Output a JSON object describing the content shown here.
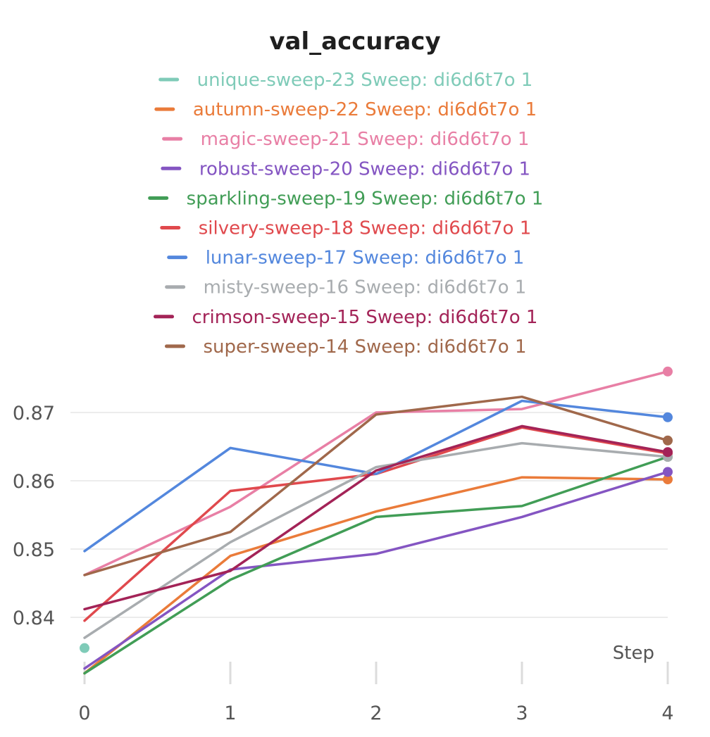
{
  "chart_data": {
    "type": "line",
    "title": "val_accuracy",
    "xlabel": "Step",
    "ylabel": "",
    "x": [
      0,
      1,
      2,
      3,
      4
    ],
    "x_ticks": [
      "0",
      "1",
      "2",
      "3",
      "4"
    ],
    "y_ticks": [
      "0.84",
      "0.85",
      "0.86",
      "0.87"
    ],
    "ylim": [
      0.8315,
      0.877
    ],
    "grid": true,
    "legend_position": "top",
    "series": [
      {
        "name": "unique-sweep-23 Sweep: di6d6t7o 1",
        "color": "#7fcbb8",
        "values": [
          0.8355,
          null,
          null,
          null,
          null
        ]
      },
      {
        "name": "autumn-sweep-22 Sweep: di6d6t7o 1",
        "color": "#ea7b3a",
        "values": [
          0.8318,
          0.849,
          0.8555,
          0.8605,
          0.8602
        ]
      },
      {
        "name": "magic-sweep-21 Sweep: di6d6t7o 1",
        "color": "#e87fa5",
        "values": [
          0.8462,
          0.8562,
          0.87,
          0.8705,
          0.876
        ]
      },
      {
        "name": "robust-sweep-20 Sweep: di6d6t7o 1",
        "color": "#8455c2",
        "values": [
          0.8325,
          0.847,
          0.8493,
          0.8547,
          0.8613
        ]
      },
      {
        "name": "sparkling-sweep-19 Sweep: di6d6t7o 1",
        "color": "#419d56",
        "values": [
          0.8318,
          0.8455,
          0.8547,
          0.8563,
          0.8635
        ]
      },
      {
        "name": "silvery-sweep-18 Sweep: di6d6t7o 1",
        "color": "#e0494d",
        "values": [
          0.8395,
          0.8585,
          0.861,
          0.8678,
          0.864
        ]
      },
      {
        "name": "lunar-sweep-17 Sweep: di6d6t7o 1",
        "color": "#5387dd",
        "values": [
          0.8497,
          0.8648,
          0.861,
          0.8717,
          0.8693
        ]
      },
      {
        "name": "misty-sweep-16 Sweep: di6d6t7o 1",
        "color": "#a8acaf",
        "values": [
          0.837,
          0.851,
          0.862,
          0.8655,
          0.8635
        ]
      },
      {
        "name": "crimson-sweep-15 Sweep: di6d6t7o 1",
        "color": "#a32357",
        "values": [
          0.8412,
          0.8468,
          0.8615,
          0.868,
          0.8642
        ]
      },
      {
        "name": "super-sweep-14 Sweep: di6d6t7o 1",
        "color": "#a0684b",
        "values": [
          0.8462,
          0.8525,
          0.8697,
          0.8723,
          0.8659
        ]
      }
    ]
  }
}
